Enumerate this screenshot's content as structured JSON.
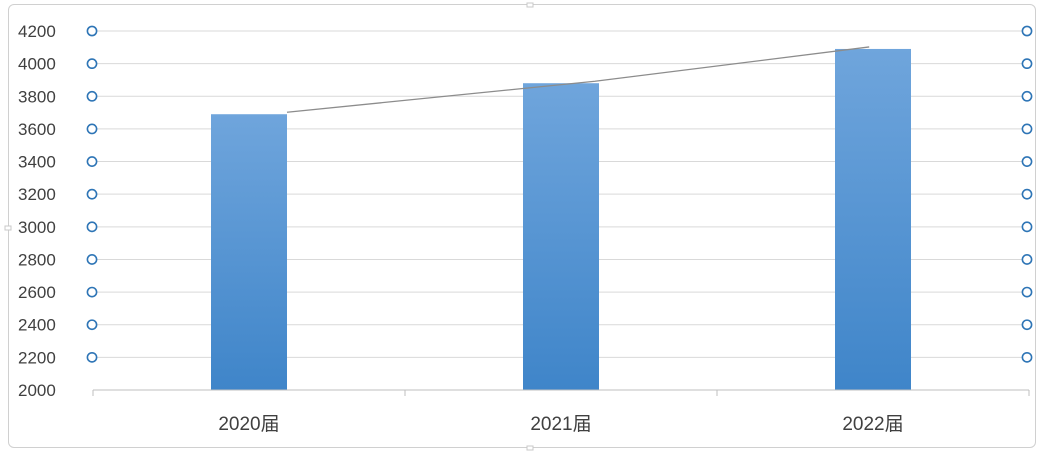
{
  "chart_data": {
    "type": "bar",
    "categories": [
      "2020届",
      "2021届",
      "2022届"
    ],
    "values": [
      3690,
      3880,
      4090
    ],
    "line_values": [
      3690,
      3880,
      4090
    ],
    "y_ticks": [
      "2000",
      "2200",
      "2400",
      "2600",
      "2800",
      "3000",
      "3200",
      "3400",
      "3600",
      "3800",
      "4000",
      "4200"
    ],
    "ylim": [
      2000,
      4200
    ],
    "title": "",
    "xlabel": "",
    "ylabel": "",
    "grid": true,
    "bar_color_top": "#6fa5dc",
    "bar_color_bottom": "#3f85c9",
    "line_color": "#8c8c8c",
    "marker_color": "#2e75b6"
  }
}
